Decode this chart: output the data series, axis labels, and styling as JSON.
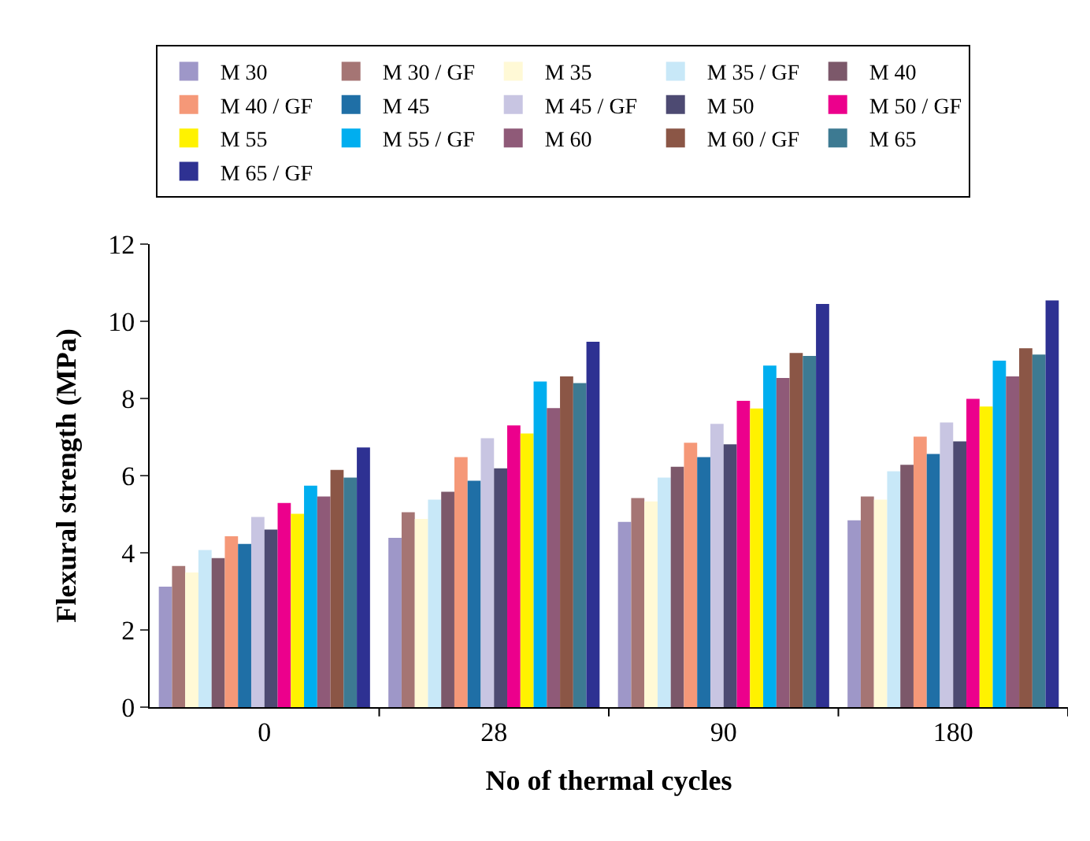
{
  "chart_data": {
    "type": "bar",
    "xlabel": "No of thermal cycles",
    "ylabel": "Flexural strength (MPa)",
    "categories": [
      "0",
      "28",
      "90",
      "180"
    ],
    "ylim": [
      0,
      12
    ],
    "yticks": [
      0,
      2,
      4,
      6,
      8,
      10,
      12
    ],
    "legend": "top",
    "series": [
      {
        "name": "M 30",
        "color": "#9e97c8",
        "values": [
          3.12,
          4.39,
          4.8,
          4.84
        ]
      },
      {
        "name": "M 30 / GF",
        "color": "#a57574",
        "values": [
          3.66,
          5.05,
          5.42,
          5.46
        ]
      },
      {
        "name": "M 35",
        "color": "#fff9d6",
        "values": [
          3.49,
          4.88,
          5.33,
          5.38
        ]
      },
      {
        "name": "M 35 / GF",
        "color": "#c8e8f8",
        "values": [
          4.07,
          5.38,
          5.95,
          6.11
        ]
      },
      {
        "name": "M 40",
        "color": "#7c586a",
        "values": [
          3.86,
          5.58,
          6.23,
          6.28
        ]
      },
      {
        "name": "M 40 / GF",
        "color": "#f59878",
        "values": [
          4.43,
          6.48,
          6.85,
          7.01
        ]
      },
      {
        "name": "M 45",
        "color": "#1f6fa6",
        "values": [
          4.23,
          5.87,
          6.48,
          6.56
        ]
      },
      {
        "name": "M 45 / GF",
        "color": "#c8c5e2",
        "values": [
          4.93,
          6.97,
          7.34,
          7.38
        ]
      },
      {
        "name": "M 50",
        "color": "#4d4a72",
        "values": [
          4.6,
          6.19,
          6.81,
          6.89
        ]
      },
      {
        "name": "M 50 / GF",
        "color": "#ec008c",
        "values": [
          5.29,
          7.3,
          7.94,
          7.99
        ]
      },
      {
        "name": "M 55",
        "color": "#fff200",
        "values": [
          5.01,
          7.09,
          7.74,
          7.79
        ]
      },
      {
        "name": "M 55 / GF",
        "color": "#00aeef",
        "values": [
          5.74,
          8.44,
          8.85,
          8.98
        ]
      },
      {
        "name": "M 60",
        "color": "#8f5a78",
        "values": [
          5.46,
          7.75,
          8.53,
          8.57
        ]
      },
      {
        "name": "M 60 / GF",
        "color": "#8b5646",
        "values": [
          6.15,
          8.57,
          9.18,
          9.3
        ]
      },
      {
        "name": "M 65",
        "color": "#3d7a92",
        "values": [
          5.95,
          8.4,
          9.1,
          9.14
        ]
      },
      {
        "name": "M 65 / GF",
        "color": "#2e3192",
        "values": [
          6.73,
          9.47,
          10.45,
          10.54
        ]
      }
    ]
  }
}
